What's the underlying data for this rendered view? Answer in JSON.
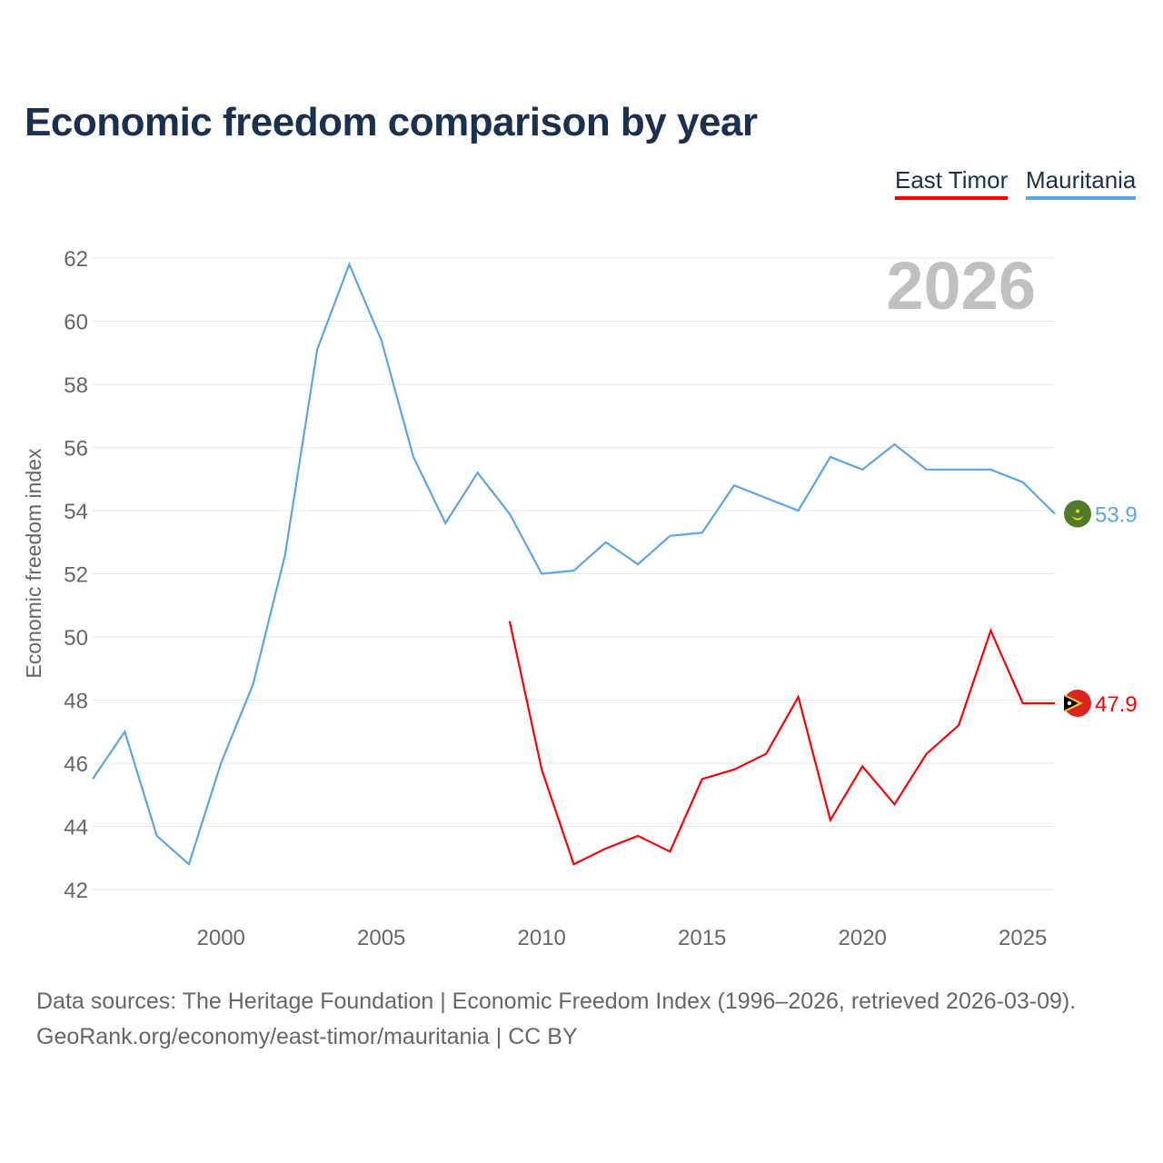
{
  "chart_data": {
    "type": "line",
    "title": "Economic freedom comparison by year",
    "xlabel": "",
    "ylabel": "Economic freedom index",
    "xlim": [
      1996,
      2026
    ],
    "ylim": [
      41,
      63
    ],
    "yticks": [
      42,
      44,
      46,
      48,
      50,
      52,
      54,
      56,
      58,
      60,
      62
    ],
    "xticks": [
      2000,
      2005,
      2010,
      2015,
      2020,
      2025
    ],
    "grid": true,
    "legend_position": "top-right",
    "year_watermark": "2026",
    "series": [
      {
        "name": "East Timor",
        "color": "#ff0000",
        "end_label": "47.9",
        "flag": "east-timor-flag",
        "x": [
          2009,
          2010,
          2011,
          2012,
          2013,
          2014,
          2015,
          2016,
          2017,
          2018,
          2019,
          2020,
          2021,
          2022,
          2023,
          2024,
          2025,
          2026
        ],
        "values": [
          50.5,
          45.8,
          42.8,
          43.3,
          43.7,
          43.2,
          45.5,
          45.8,
          46.3,
          48.1,
          44.2,
          45.9,
          44.7,
          46.3,
          47.2,
          50.2,
          47.9,
          47.9
        ]
      },
      {
        "name": "Mauritania",
        "color": "#5aa5e8",
        "end_label": "53.9",
        "flag": "mauritania-flag",
        "x": [
          1996,
          1997,
          1998,
          1999,
          2000,
          2001,
          2002,
          2003,
          2004,
          2005,
          2006,
          2007,
          2008,
          2009,
          2010,
          2011,
          2012,
          2013,
          2014,
          2015,
          2016,
          2017,
          2018,
          2019,
          2020,
          2021,
          2022,
          2023,
          2024,
          2025,
          2026
        ],
        "values": [
          45.5,
          47.0,
          43.7,
          42.8,
          46.0,
          48.5,
          52.6,
          59.1,
          61.8,
          59.4,
          55.7,
          53.6,
          55.2,
          53.9,
          52.0,
          52.1,
          53.0,
          52.3,
          53.2,
          53.3,
          54.8,
          54.4,
          54.0,
          55.7,
          55.3,
          56.1,
          55.3,
          55.3,
          55.3,
          54.9,
          53.9
        ]
      }
    ]
  },
  "footer": {
    "line1": "Data sources: The Heritage Foundation | Economic Freedom Index (1996–2026, retrieved 2026-03-09).",
    "line2": "GeoRank.org/economy/east-timor/mauritania | CC BY"
  }
}
